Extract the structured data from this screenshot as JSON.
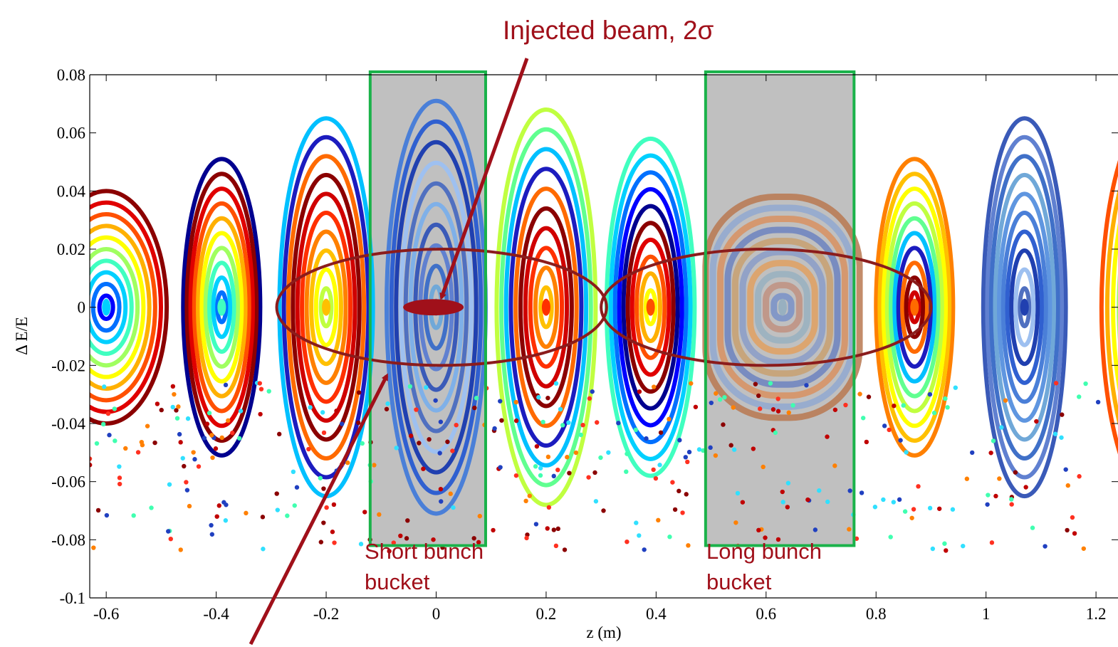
{
  "chart_data": {
    "type": "scatter",
    "xlabel": "z (m)",
    "ylabel": "Δ E/E",
    "xlim": [
      -0.63,
      1.24
    ],
    "ylim": [
      -0.1,
      0.08
    ],
    "xticks": [
      -0.6,
      -0.4,
      -0.2,
      0,
      0.2,
      0.4,
      0.6,
      0.8,
      1,
      1.2
    ],
    "xtick_labels": [
      "-0.6",
      "-0.4",
      "-0.2",
      "0",
      "0.2",
      "0.4",
      "0.6",
      "0.8",
      "1",
      "1.2"
    ],
    "yticks": [
      0.08,
      0.06,
      0.04,
      0.02,
      0,
      -0.02,
      -0.04,
      -0.06,
      -0.08,
      -0.1
    ],
    "ytick_labels": [
      "0.08",
      "0.06",
      "0.04",
      "0.02",
      "0",
      "-0.02",
      "-0.04",
      "-0.06",
      "-0.08",
      "-0.1"
    ],
    "grid": false,
    "buckets": [
      {
        "z_center": -0.6,
        "half_width": 0.11,
        "half_height": 0.04,
        "palette": "jet",
        "shape": "half-open"
      },
      {
        "z_center": -0.39,
        "half_width": 0.07,
        "half_height": 0.051,
        "palette": "jet"
      },
      {
        "z_center": -0.2,
        "half_width": 0.085,
        "half_height": 0.065,
        "palette": "warm"
      },
      {
        "z_center": 0.0,
        "half_width": 0.09,
        "half_height": 0.071,
        "palette": "blue"
      },
      {
        "z_center": 0.2,
        "half_width": 0.09,
        "half_height": 0.068,
        "palette": "warm"
      },
      {
        "z_center": 0.39,
        "half_width": 0.08,
        "half_height": 0.058,
        "palette": "jet"
      },
      {
        "z_center": 0.63,
        "half_width": 0.14,
        "half_height": 0.038,
        "palette": "muted",
        "shape": "rounded-rect"
      },
      {
        "z_center": 0.87,
        "half_width": 0.07,
        "half_height": 0.051,
        "palette": "warm"
      },
      {
        "z_center": 1.07,
        "half_width": 0.075,
        "half_height": 0.065,
        "palette": "blue"
      },
      {
        "z_center": 1.32,
        "half_width": 0.11,
        "half_height": 0.07,
        "palette": "jet"
      }
    ],
    "highlight_boxes": [
      {
        "z_range": [
          -0.12,
          0.09
        ],
        "de_range": [
          -0.082,
          0.081
        ],
        "fill": "#c0c0c0",
        "stroke": "#1ab24a"
      },
      {
        "z_range": [
          0.49,
          0.76
        ],
        "de_range": [
          -0.082,
          0.081
        ],
        "fill": "#c0c0c0",
        "stroke": "#1ab24a"
      }
    ],
    "beam_ellipses": [
      {
        "z_center": 0.01,
        "z_half": 0.3,
        "de_half": 0.02,
        "stroke": "#8b1c1c"
      },
      {
        "z_center": 0.6,
        "z_half": 0.3,
        "de_half": 0.02,
        "stroke": "#8b1c1c"
      }
    ],
    "injected_beam": {
      "z_center": -0.005,
      "z_half": 0.055,
      "de_half": 0.0028,
      "fill": "#a0101a"
    },
    "annotations": [
      {
        "key": "injected",
        "text": "Injected beam, 2σ"
      },
      {
        "key": "short1",
        "text": "Short bunch"
      },
      {
        "key": "short2",
        "text": "bucket"
      },
      {
        "key": "long1",
        "text": "Long bunch"
      },
      {
        "key": "long2",
        "text": "bucket"
      }
    ],
    "colors": {
      "arrow": "#a0101a",
      "box_stroke": "#1ab24a",
      "box_fill": "#c0c0c0",
      "ellipse": "#8b1c1c"
    }
  }
}
